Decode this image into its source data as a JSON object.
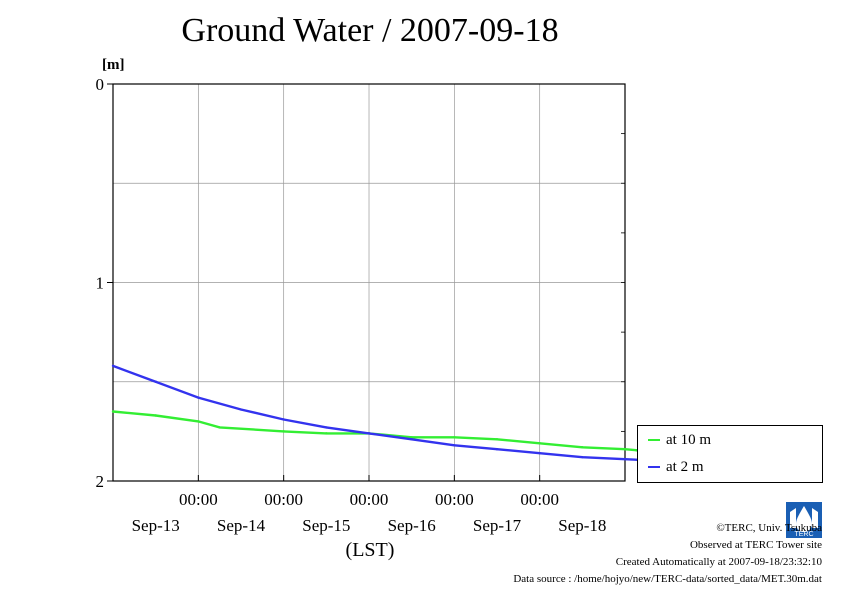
{
  "chart_data": {
    "type": "line",
    "title": "Ground Water / 2007-09-18",
    "ylabel": "[m]",
    "xlabel": "(LST)",
    "ylim": [
      2,
      0
    ],
    "y_inverted": true,
    "y_ticks": [
      "0",
      "1",
      "2"
    ],
    "x_time_labels": [
      "00:00",
      "00:00",
      "00:00",
      "00:00",
      "00:00"
    ],
    "x_date_labels": [
      "Sep-13",
      "Sep-14",
      "Sep-15",
      "Sep-16",
      "Sep-17",
      "Sep-18"
    ],
    "grid": true,
    "legend_position": "right",
    "series": [
      {
        "name": "at 10 m",
        "color": "#33ee33",
        "x": [
          "2007-09-12 00:00",
          "2007-09-12 12:00",
          "2007-09-13 00:00",
          "2007-09-13 06:00",
          "2007-09-14 00:00",
          "2007-09-14 12:00",
          "2007-09-15 00:00",
          "2007-09-15 12:00",
          "2007-09-16 00:00",
          "2007-09-16 12:00",
          "2007-09-17 00:00",
          "2007-09-17 12:00",
          "2007-09-18 00:00",
          "2007-09-18 12:00",
          "2007-09-18 23:30"
        ],
        "values": [
          1.65,
          1.67,
          1.7,
          1.73,
          1.75,
          1.76,
          1.76,
          1.78,
          1.78,
          1.79,
          1.81,
          1.83,
          1.84,
          1.86,
          1.87
        ]
      },
      {
        "name": "at 2 m",
        "color": "#3333ee",
        "x": [
          "2007-09-12 00:00",
          "2007-09-12 12:00",
          "2007-09-13 00:00",
          "2007-09-13 12:00",
          "2007-09-14 00:00",
          "2007-09-14 12:00",
          "2007-09-15 00:00",
          "2007-09-15 12:00",
          "2007-09-16 00:00",
          "2007-09-16 12:00",
          "2007-09-17 00:00",
          "2007-09-17 12:00",
          "2007-09-18 00:00",
          "2007-09-18 12:00",
          "2007-09-18 23:30"
        ],
        "values": [
          1.42,
          1.5,
          1.58,
          1.64,
          1.69,
          1.73,
          1.76,
          1.79,
          1.82,
          1.84,
          1.86,
          1.88,
          1.89,
          1.9,
          1.91
        ]
      }
    ]
  },
  "footer": {
    "copyright": "©TERC, Univ. Tsukuba",
    "observed": "Observed at TERC Tower site",
    "created": "Created Automatically at 2007-09-18/23:32:10",
    "source": "Data source : /home/hojyo/new/TERC-data/sorted_data/MET.30m.dat"
  },
  "logo": {
    "text": "TERC"
  }
}
